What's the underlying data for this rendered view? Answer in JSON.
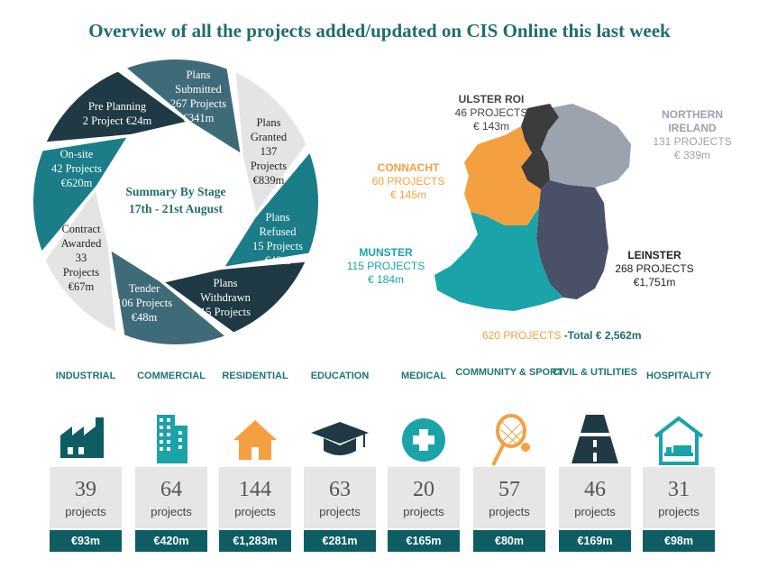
{
  "title": "Overview of all the projects added/updated on CIS Online this last week",
  "summary": {
    "line1": "Summary By Stage",
    "line2": "17th - 21st August"
  },
  "stages": [
    {
      "lines": [
        "Plans",
        "Submitted",
        "267 Projects",
        "€341m"
      ],
      "color": "#3f6b79"
    },
    {
      "lines": [
        "Plans",
        "Granted",
        "137",
        "Projects",
        "€839m"
      ],
      "color": "#e4e4e4"
    },
    {
      "lines": [
        "Plans",
        "Refused",
        "15 Projects",
        "€48m"
      ],
      "color": "#1a7d88"
    },
    {
      "lines": [
        "Plans",
        "Withdrawn",
        "15 Projects"
      ],
      "color": "#1f3a44"
    },
    {
      "lines": [
        "Tender",
        "106 Projects",
        "€48m"
      ],
      "color": "#3f6b79"
    },
    {
      "lines": [
        "Contract",
        "Awarded",
        "33",
        "Projects",
        "€67m"
      ],
      "color": "#e4e4e4"
    },
    {
      "lines": [
        "On-site",
        "42 Projects",
        "€620m"
      ],
      "color": "#1a7d88"
    },
    {
      "lines": [
        "Pre Planning",
        "2 Project €24m"
      ],
      "color": "#1f3a44"
    }
  ],
  "regions": {
    "ulster": {
      "name": "ULSTER ROI",
      "projects": "46 PROJECTS",
      "value": "€ 143m"
    },
    "ni": {
      "name1": "NORTHERN",
      "name2": "IRELAND",
      "projects": "131 PROJECTS",
      "value": "€ 339m"
    },
    "connacht": {
      "name": "CONNACHT",
      "projects": "60 PROJECTS",
      "value": "€ 145m"
    },
    "munster": {
      "name": "MUNSTER",
      "projects": "115 PROJECTS",
      "value": "€ 184m"
    },
    "leinster": {
      "name": "LEINSTER",
      "projects": "268 PROJECTS",
      "value": "€1,751m"
    }
  },
  "total": {
    "projects": "620 PROJECTS",
    "text": "-Total € 2,562m"
  },
  "projects_label": "projects",
  "sectors": [
    {
      "name": "INDUSTRIAL",
      "count": "39",
      "value": "€93m",
      "icon": "factory-icon"
    },
    {
      "name": "COMMERCIAL",
      "count": "64",
      "value": "€420m",
      "icon": "office-building-icon"
    },
    {
      "name": "RESIDENTIAL",
      "count": "144",
      "value": "€1,283m",
      "icon": "house-icon"
    },
    {
      "name": "EDUCATION",
      "count": "63",
      "value": "€281m",
      "icon": "graduation-cap-icon"
    },
    {
      "name": "MEDICAL",
      "count": "20",
      "value": "€165m",
      "icon": "medical-cross-icon"
    },
    {
      "name": "COMMUNITY & SPORT",
      "count": "57",
      "value": "€80m",
      "icon": "tennis-racket-icon"
    },
    {
      "name": "CIVIL & UTILITIES",
      "count": "46",
      "value": "€169m",
      "icon": "road-icon"
    },
    {
      "name": "HOSPITALITY",
      "count": "31",
      "value": "€98m",
      "icon": "hotel-bed-icon"
    }
  ],
  "colors": {
    "teal_dark": "#0d5d63",
    "teal": "#1a7d88",
    "slate": "#3f6b79",
    "navy": "#1f3a44",
    "orange": "#f5a040",
    "ni_gray": "#9aa3ae",
    "leinster": "#4a5068",
    "munster": "#1aa3a8"
  }
}
